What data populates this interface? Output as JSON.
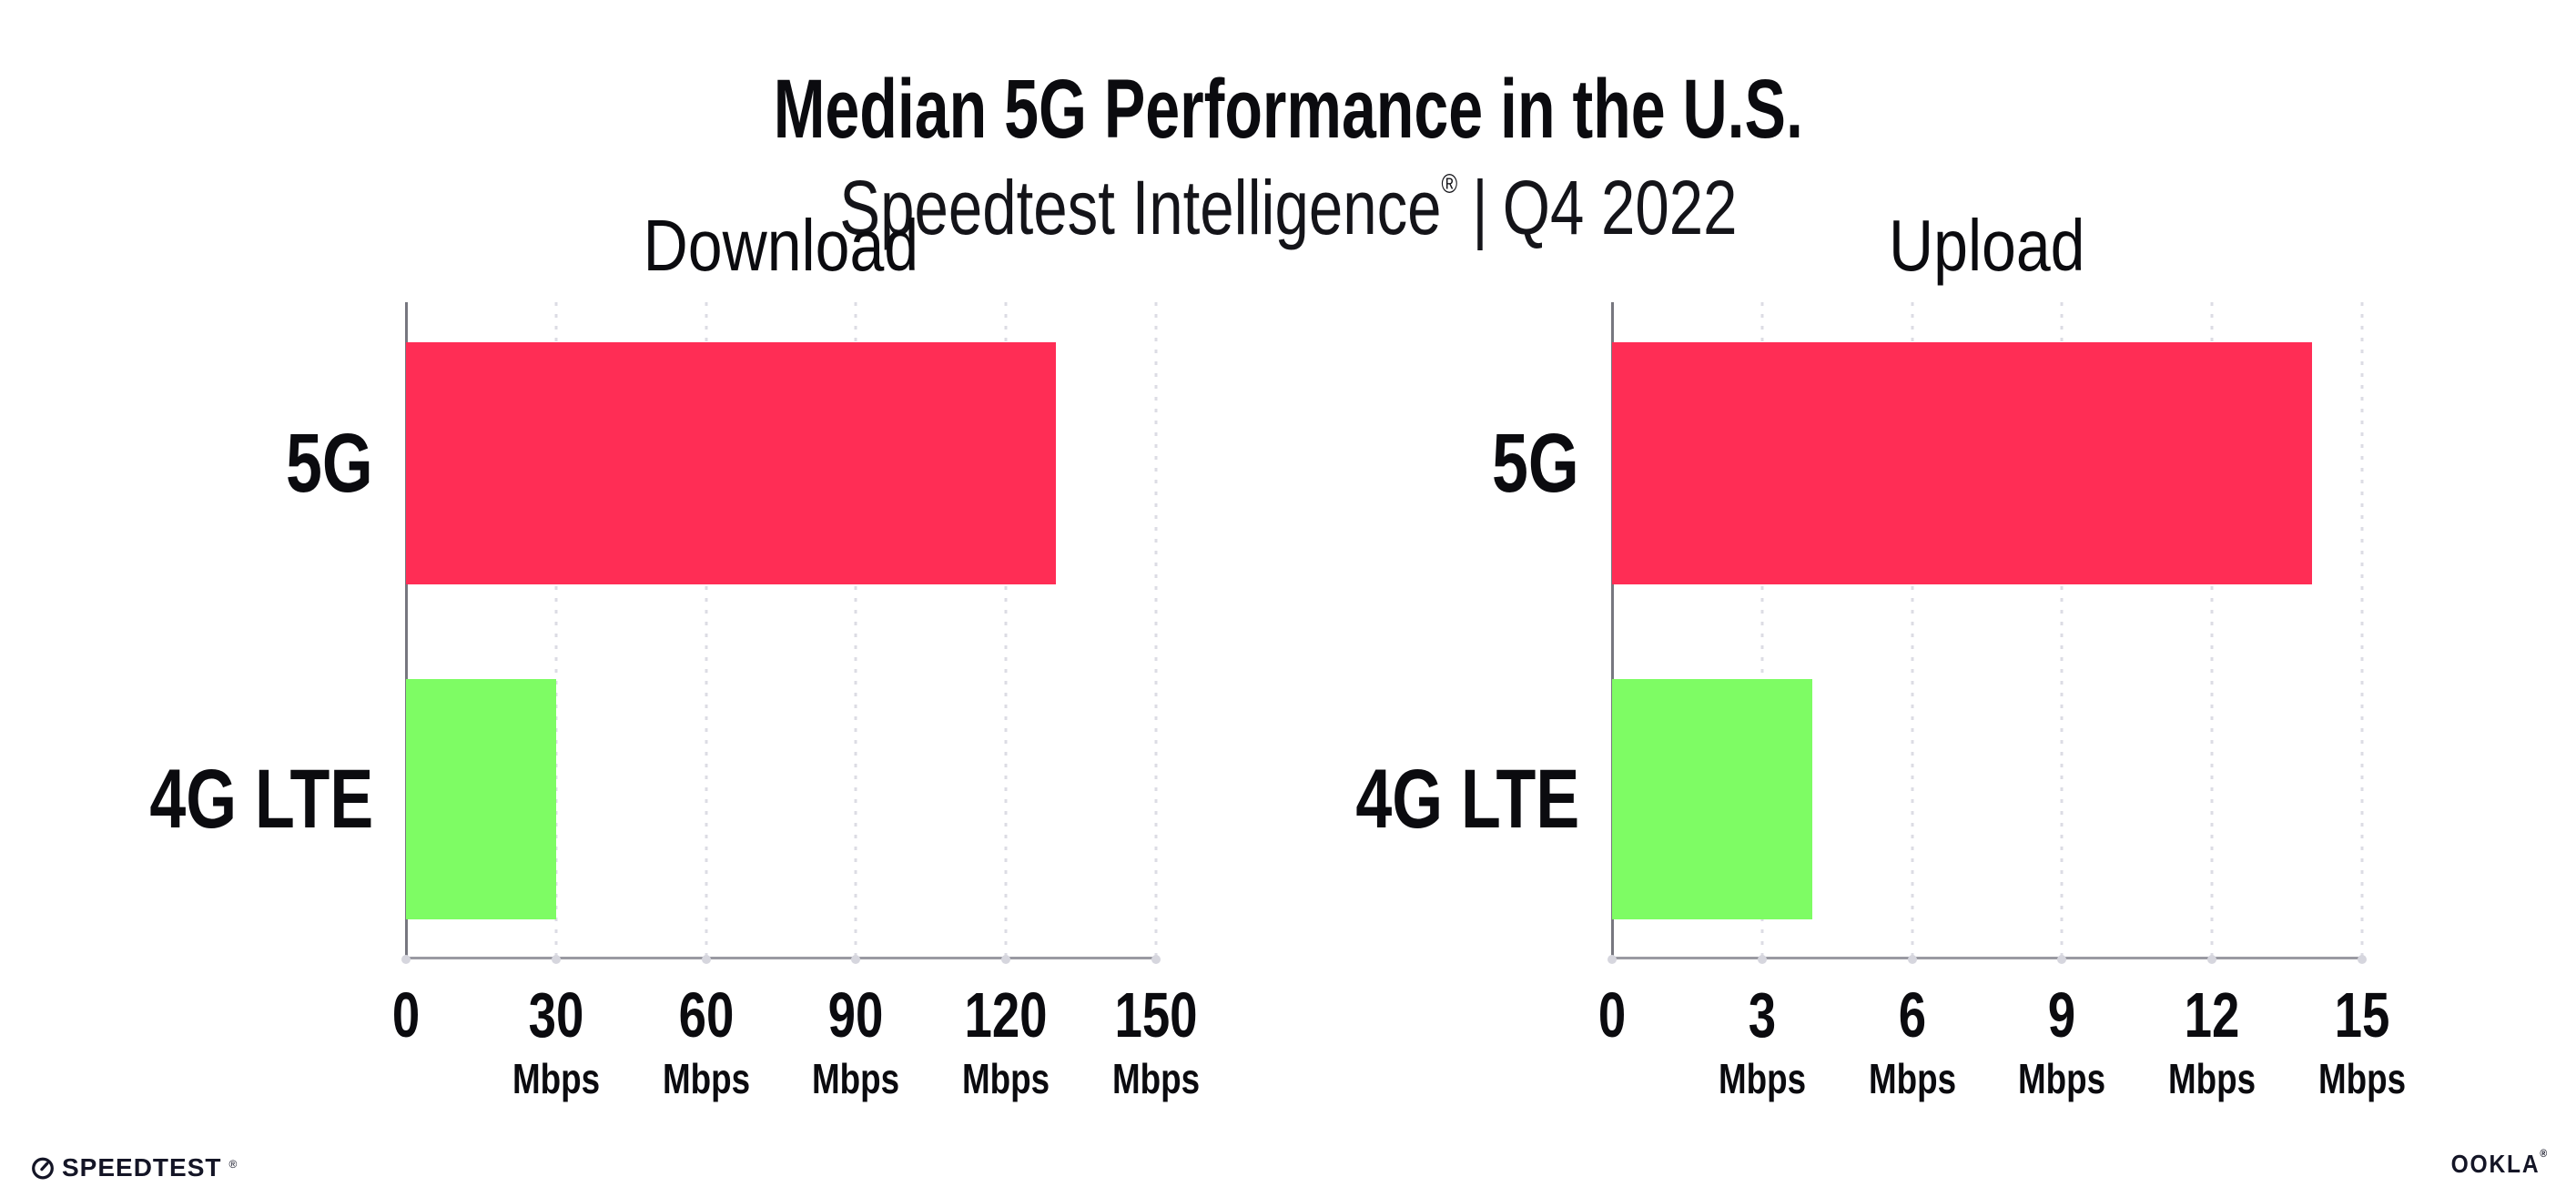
{
  "header": {
    "title": "Median 5G Performance in the U.S.",
    "subtitle_product": "Speedtest Intelligence",
    "subtitle_reg": "®",
    "subtitle_divider": "|",
    "subtitle_period": "Q4 2022"
  },
  "chart_data": [
    {
      "type": "bar",
      "orientation": "horizontal",
      "title": "Download",
      "categories": [
        "5G",
        "4G LTE"
      ],
      "values": [
        130,
        30
      ],
      "unit": "Mbps",
      "xlim": [
        0,
        150
      ],
      "xticks": [
        0,
        30,
        60,
        90,
        120,
        150
      ],
      "tick_unit_label": "Mbps",
      "bar_colors": [
        "#FF2D55",
        "#7EFC64"
      ],
      "grid": "vertical-dotted",
      "legend": "none"
    },
    {
      "type": "bar",
      "orientation": "horizontal",
      "title": "Upload",
      "categories": [
        "5G",
        "4G LTE"
      ],
      "values": [
        14,
        4
      ],
      "unit": "Mbps",
      "xlim": [
        0,
        15
      ],
      "xticks": [
        0,
        3,
        6,
        9,
        12,
        15
      ],
      "tick_unit_label": "Mbps",
      "bar_colors": [
        "#FF2D55",
        "#7EFC64"
      ],
      "grid": "vertical-dotted",
      "legend": "none"
    }
  ],
  "footer": {
    "speedtest_label": "SPEEDTEST",
    "speedtest_reg": "®",
    "ookla_label": "OOKLA",
    "ookla_reg": "®"
  },
  "colors": {
    "bar_5g": "#FF2D55",
    "bar_4g_lte": "#7EFC64",
    "axis": "#9A9AA2",
    "gridline": "#DCDCE4",
    "text": "#0B0B0F"
  }
}
